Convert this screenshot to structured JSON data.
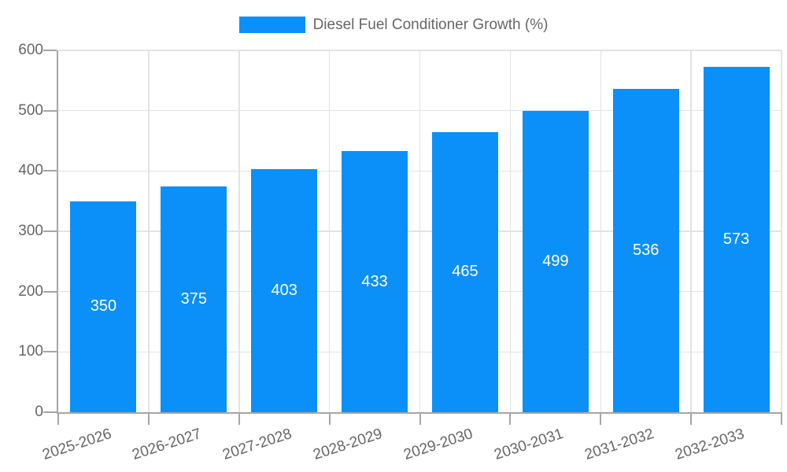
{
  "legend": {
    "label": "Diesel Fuel Conditioner Growth (%)"
  },
  "chart_data": {
    "type": "bar",
    "title": "",
    "series_name": "Diesel Fuel Conditioner Growth (%)",
    "categories": [
      "2025-2026",
      "2026-2027",
      "2027-2028",
      "2028-2029",
      "2029-2030",
      "2030-2031",
      "2031-2032",
      "2032-2033"
    ],
    "values": [
      350,
      375,
      403,
      433,
      465,
      499,
      536,
      573
    ],
    "value_labels": [
      "350",
      "375",
      "403",
      "433",
      "465",
      "499",
      "536",
      "573"
    ],
    "yticks": [
      "0",
      "100",
      "200",
      "300",
      "400",
      "500",
      "600"
    ],
    "ylim": [
      0,
      600
    ],
    "ytick_step": 100,
    "xlabel": "",
    "ylabel": "",
    "grid": true,
    "legend_position": "top",
    "x_label_rotation_deg": -18,
    "colors": {
      "bar": "#0a90f8",
      "value_label": "#ffffff",
      "grid": "#e3e3e3",
      "axis": "#a6a6a6",
      "tick_label": "#666666",
      "background": "#ffffff"
    }
  }
}
